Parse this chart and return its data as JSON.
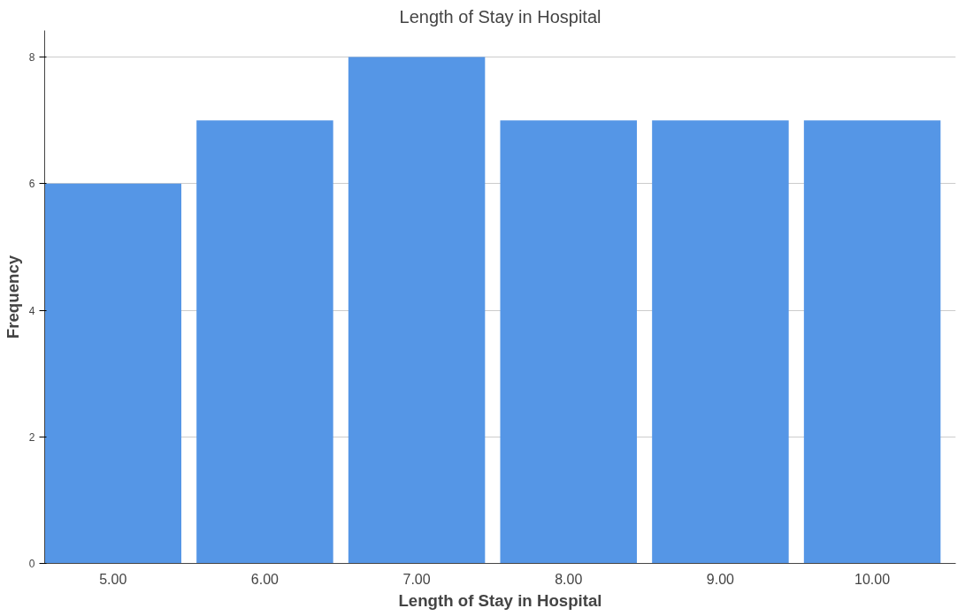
{
  "chart_data": {
    "type": "bar",
    "title": "Length of Stay in Hospital",
    "xlabel": "Length of Stay in Hospital",
    "ylabel": "Frequency",
    "categories": [
      "5.00",
      "6.00",
      "7.00",
      "8.00",
      "9.00",
      "10.00"
    ],
    "values": [
      6,
      7,
      8,
      7,
      7,
      7
    ],
    "color": "#5596e6",
    "ylim": [
      0,
      8.42
    ],
    "yticks": [
      0,
      2,
      4,
      6,
      8
    ],
    "grid": "y"
  }
}
